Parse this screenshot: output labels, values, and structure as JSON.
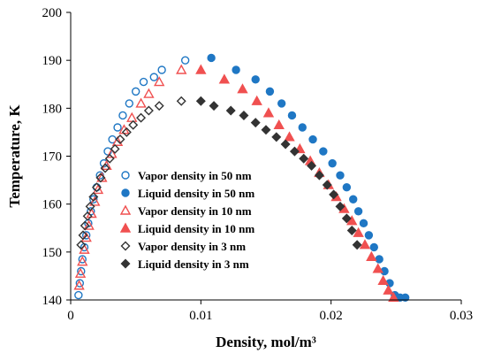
{
  "chart_data": {
    "type": "scatter",
    "xlabel": "Density, mol/m³",
    "ylabel": "Temperature, K",
    "xlim": [
      0,
      0.03
    ],
    "ylim": [
      140,
      200
    ],
    "x_ticks": [
      0,
      0.01,
      0.02,
      0.03
    ],
    "x_tick_labels": [
      "0",
      "0.01",
      "0.02",
      "0.03"
    ],
    "y_ticks": [
      140,
      150,
      160,
      170,
      180,
      190,
      200
    ],
    "y_tick_labels": [
      "140",
      "150",
      "160",
      "170",
      "180",
      "190",
      "200"
    ],
    "grid": false,
    "legend_position": "center-left",
    "series": [
      {
        "name": "Vapor density in 50 nm",
        "marker": "circle",
        "filled": false,
        "color": "#1f77c4",
        "x": [
          0.0006,
          0.0007,
          0.0008,
          0.0009,
          0.00105,
          0.0012,
          0.00135,
          0.00155,
          0.00175,
          0.002,
          0.00225,
          0.00255,
          0.00285,
          0.0032,
          0.0036,
          0.004,
          0.0045,
          0.005,
          0.0056,
          0.0064,
          0.007,
          0.0088
        ],
        "y": [
          141,
          143.5,
          146,
          148.5,
          151,
          153.5,
          156,
          158.5,
          161,
          163.5,
          166,
          168.5,
          171,
          173.5,
          176,
          178.5,
          181,
          183.5,
          185.5,
          186.5,
          188,
          190
        ]
      },
      {
        "name": "Liquid density in 50 nm",
        "marker": "circle",
        "filled": true,
        "color": "#1f77c4",
        "x": [
          0.0108,
          0.0127,
          0.0142,
          0.0153,
          0.0162,
          0.017,
          0.0178,
          0.0186,
          0.0194,
          0.0201,
          0.0207,
          0.0212,
          0.0217,
          0.0221,
          0.0225,
          0.0229,
          0.0233,
          0.0237,
          0.0241,
          0.0245,
          0.0249,
          0.0253,
          0.0257
        ],
        "y": [
          190.5,
          188,
          186,
          183.5,
          181,
          178.5,
          176,
          173.5,
          171,
          168.5,
          166,
          163.5,
          161,
          158.5,
          156,
          153.5,
          151,
          148.5,
          146,
          143.5,
          141,
          140.5,
          140.5
        ]
      },
      {
        "name": "Vapor density in 10 nm",
        "marker": "triangle",
        "filled": false,
        "color": "#f05050",
        "x": [
          0.00065,
          0.00075,
          0.0009,
          0.00105,
          0.0012,
          0.0014,
          0.0016,
          0.00185,
          0.0021,
          0.0024,
          0.00275,
          0.00315,
          0.0036,
          0.0041,
          0.0047,
          0.0054,
          0.006,
          0.0068,
          0.0085
        ],
        "y": [
          143,
          145.5,
          148,
          150.5,
          153,
          155.5,
          158,
          160.5,
          163,
          165.5,
          168,
          170.5,
          173,
          175.5,
          178,
          181,
          183,
          185.5,
          188
        ]
      },
      {
        "name": "Liquid density in 10 nm",
        "marker": "triangle",
        "filled": true,
        "color": "#f05050",
        "x": [
          0.01,
          0.0118,
          0.0132,
          0.0143,
          0.0152,
          0.016,
          0.0168,
          0.0176,
          0.0184,
          0.0191,
          0.0198,
          0.0204,
          0.021,
          0.0216,
          0.0221,
          0.0226,
          0.0231,
          0.0236,
          0.024,
          0.0244,
          0.0248
        ],
        "y": [
          188,
          186,
          184,
          181.5,
          179,
          176.5,
          174,
          171.5,
          169,
          166.5,
          164,
          161.5,
          159,
          156.5,
          154,
          151.5,
          149,
          146.5,
          144,
          142,
          140.5
        ]
      },
      {
        "name": "Vapor density in 3 nm",
        "marker": "diamond",
        "filled": false,
        "color": "#333333",
        "x": [
          0.0008,
          0.00095,
          0.0011,
          0.0013,
          0.0015,
          0.00175,
          0.002,
          0.0023,
          0.00265,
          0.003,
          0.0034,
          0.0038,
          0.0043,
          0.0048,
          0.0054,
          0.006,
          0.0068,
          0.0085
        ],
        "y": [
          151.5,
          153.5,
          155.5,
          157.5,
          159.5,
          161.5,
          163.5,
          165.5,
          167.5,
          169.5,
          171.5,
          173.5,
          175,
          176.5,
          178,
          179.5,
          180.5,
          181.5
        ]
      },
      {
        "name": "Liquid density in 3 nm",
        "marker": "diamond",
        "filled": true,
        "color": "#333333",
        "x": [
          0.01,
          0.011,
          0.0123,
          0.0133,
          0.0142,
          0.015,
          0.0158,
          0.0165,
          0.0172,
          0.0179,
          0.0185,
          0.0191,
          0.0197,
          0.0202,
          0.0207,
          0.0212,
          0.0216,
          0.022
        ],
        "y": [
          181.5,
          180.5,
          179.5,
          178.5,
          177,
          175.5,
          174,
          172.5,
          171,
          169.5,
          168,
          166,
          164,
          162,
          159.5,
          157,
          154.5,
          151.5
        ]
      }
    ]
  }
}
